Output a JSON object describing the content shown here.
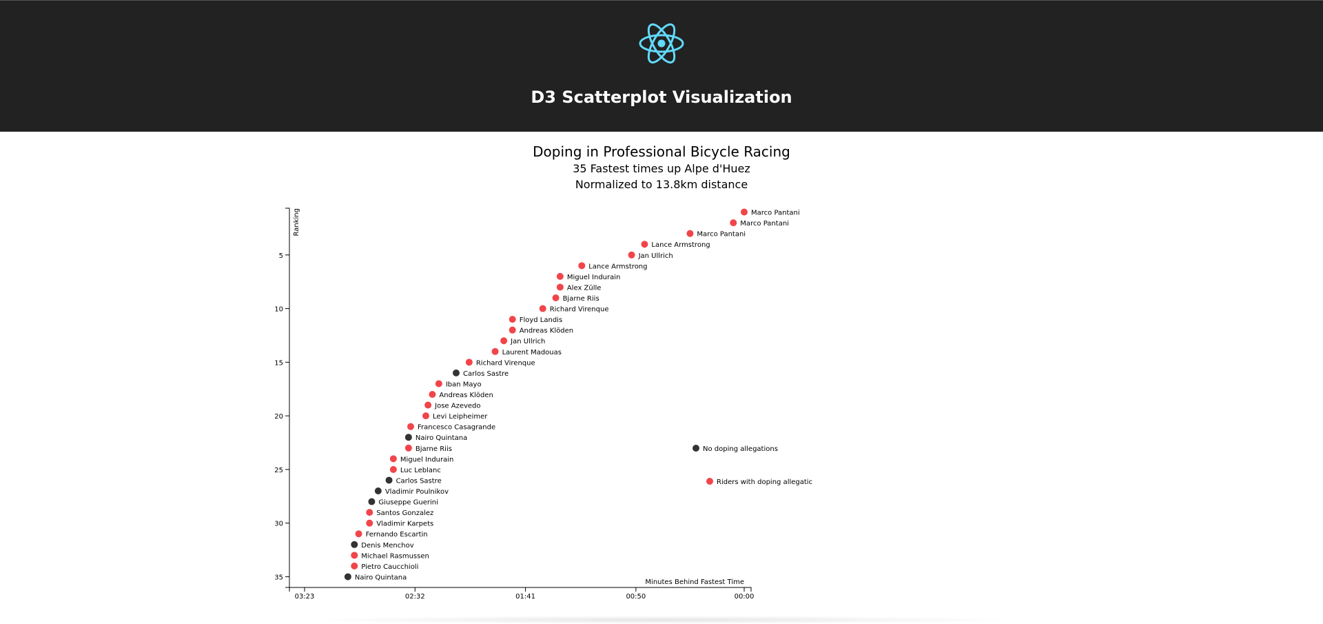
{
  "header": {
    "logo_icon": "react-atom-icon",
    "logo_color": "#61dafb",
    "title": "D3 Scatterplot Visualization",
    "background": "#222222"
  },
  "chart": {
    "title": "Doping in Professional Bicycle Racing",
    "subtitle1": "35 Fastest times up Alpe d'Huez",
    "subtitle2": "Normalized to 13.8km distance"
  },
  "chart_data": {
    "type": "scatter",
    "xlabel": "Minutes Behind Fastest Time",
    "ylabel": "Ranking",
    "x_ticks": [
      "03:23",
      "02:32",
      "01:41",
      "00:50",
      "00:00"
    ],
    "y_ticks": [
      "5",
      "10",
      "15",
      "20",
      "25",
      "30",
      "35"
    ],
    "x_range_seconds_behind": [
      210,
      0
    ],
    "y_range_rank": [
      0,
      36
    ],
    "grid": false,
    "colors": {
      "doping": "#f1454a",
      "clean": "#333333"
    },
    "legend": [
      {
        "label": "No doping allegations",
        "doping": false
      },
      {
        "label": "Riders with doping allegatic",
        "doping": true
      }
    ],
    "legend_position": "right",
    "points": [
      {
        "rank": 1,
        "seconds_behind": 0,
        "name": "Marco Pantani",
        "doping": true
      },
      {
        "rank": 2,
        "seconds_behind": 5,
        "name": "Marco Pantani",
        "doping": true
      },
      {
        "rank": 3,
        "seconds_behind": 25,
        "name": "Marco Pantani",
        "doping": true
      },
      {
        "rank": 4,
        "seconds_behind": 46,
        "name": "Lance Armstrong",
        "doping": true
      },
      {
        "rank": 5,
        "seconds_behind": 52,
        "name": "Jan Ullrich",
        "doping": true
      },
      {
        "rank": 6,
        "seconds_behind": 75,
        "name": "Lance Armstrong",
        "doping": true
      },
      {
        "rank": 7,
        "seconds_behind": 85,
        "name": "Miguel Indurain",
        "doping": true
      },
      {
        "rank": 8,
        "seconds_behind": 85,
        "name": "Alex Zülle",
        "doping": true
      },
      {
        "rank": 9,
        "seconds_behind": 87,
        "name": "Bjarne Riis",
        "doping": true
      },
      {
        "rank": 10,
        "seconds_behind": 93,
        "name": "Richard Virenque",
        "doping": true
      },
      {
        "rank": 11,
        "seconds_behind": 107,
        "name": "Floyd Landis",
        "doping": true
      },
      {
        "rank": 12,
        "seconds_behind": 107,
        "name": "Andreas Klöden",
        "doping": true
      },
      {
        "rank": 13,
        "seconds_behind": 111,
        "name": "Jan Ullrich",
        "doping": true
      },
      {
        "rank": 14,
        "seconds_behind": 115,
        "name": "Laurent Madouas",
        "doping": true
      },
      {
        "rank": 15,
        "seconds_behind": 127,
        "name": "Richard Virenque",
        "doping": true
      },
      {
        "rank": 16,
        "seconds_behind": 133,
        "name": "Carlos Sastre",
        "doping": false
      },
      {
        "rank": 17,
        "seconds_behind": 141,
        "name": "Iban Mayo",
        "doping": true
      },
      {
        "rank": 18,
        "seconds_behind": 144,
        "name": "Andreas Klöden",
        "doping": true
      },
      {
        "rank": 19,
        "seconds_behind": 146,
        "name": "Jose Azevedo",
        "doping": true
      },
      {
        "rank": 20,
        "seconds_behind": 147,
        "name": "Levi Leipheimer",
        "doping": true
      },
      {
        "rank": 21,
        "seconds_behind": 154,
        "name": "Francesco Casagrande",
        "doping": true
      },
      {
        "rank": 22,
        "seconds_behind": 155,
        "name": "Nairo Quintana",
        "doping": false
      },
      {
        "rank": 23,
        "seconds_behind": 155,
        "name": "Bjarne Riis",
        "doping": true
      },
      {
        "rank": 24,
        "seconds_behind": 162,
        "name": "Miguel Indurain",
        "doping": true
      },
      {
        "rank": 25,
        "seconds_behind": 162,
        "name": "Luc Leblanc",
        "doping": true
      },
      {
        "rank": 26,
        "seconds_behind": 164,
        "name": "Carlos Sastre",
        "doping": false
      },
      {
        "rank": 27,
        "seconds_behind": 169,
        "name": "Vladimir Poulnikov",
        "doping": false
      },
      {
        "rank": 28,
        "seconds_behind": 172,
        "name": "Giuseppe Guerini",
        "doping": false
      },
      {
        "rank": 29,
        "seconds_behind": 173,
        "name": "Santos Gonzalez",
        "doping": true
      },
      {
        "rank": 30,
        "seconds_behind": 173,
        "name": "Vladimir Karpets",
        "doping": true
      },
      {
        "rank": 31,
        "seconds_behind": 178,
        "name": "Fernando Escartin",
        "doping": true
      },
      {
        "rank": 32,
        "seconds_behind": 180,
        "name": "Denis Menchov",
        "doping": false
      },
      {
        "rank": 33,
        "seconds_behind": 180,
        "name": "Michael Rasmussen",
        "doping": true
      },
      {
        "rank": 34,
        "seconds_behind": 180,
        "name": "Pietro Caucchioli",
        "doping": true
      },
      {
        "rank": 35,
        "seconds_behind": 183,
        "name": "Nairo Quintana",
        "doping": false
      }
    ]
  }
}
